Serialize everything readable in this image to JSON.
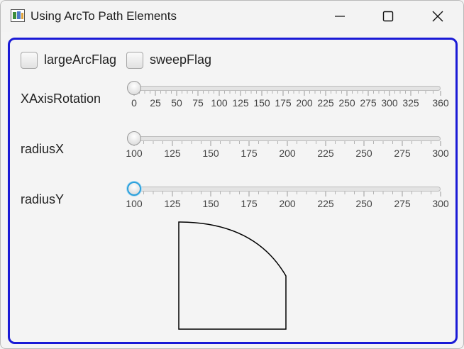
{
  "window": {
    "title": "Using ArcTo Path Elements"
  },
  "controls": {
    "large_arc_flag": {
      "label": "largeArcFlag",
      "checked": false
    },
    "sweep_flag": {
      "label": "sweepFlag",
      "checked": false
    },
    "sliders": [
      {
        "label": "XAxisRotation",
        "value": 0,
        "min": 0,
        "max": 360,
        "tick_labels": [
          "0",
          "25",
          "50",
          "75",
          "100",
          "125",
          "150",
          "175",
          "200",
          "225",
          "250",
          "275",
          "300",
          "325",
          "360"
        ],
        "focused": false
      },
      {
        "label": "radiusX",
        "value": 100,
        "min": 100,
        "max": 300,
        "tick_labels": [
          "100",
          "125",
          "150",
          "175",
          "200",
          "225",
          "250",
          "275",
          "300"
        ],
        "focused": false
      },
      {
        "label": "radiusY",
        "value": 100,
        "min": 100,
        "max": 300,
        "tick_labels": [
          "100",
          "125",
          "150",
          "175",
          "200",
          "225",
          "250",
          "275",
          "300"
        ],
        "focused": true
      }
    ]
  },
  "colors": {
    "content_border": "#1a1ad6",
    "focus_ring": "#2aa0dc"
  }
}
